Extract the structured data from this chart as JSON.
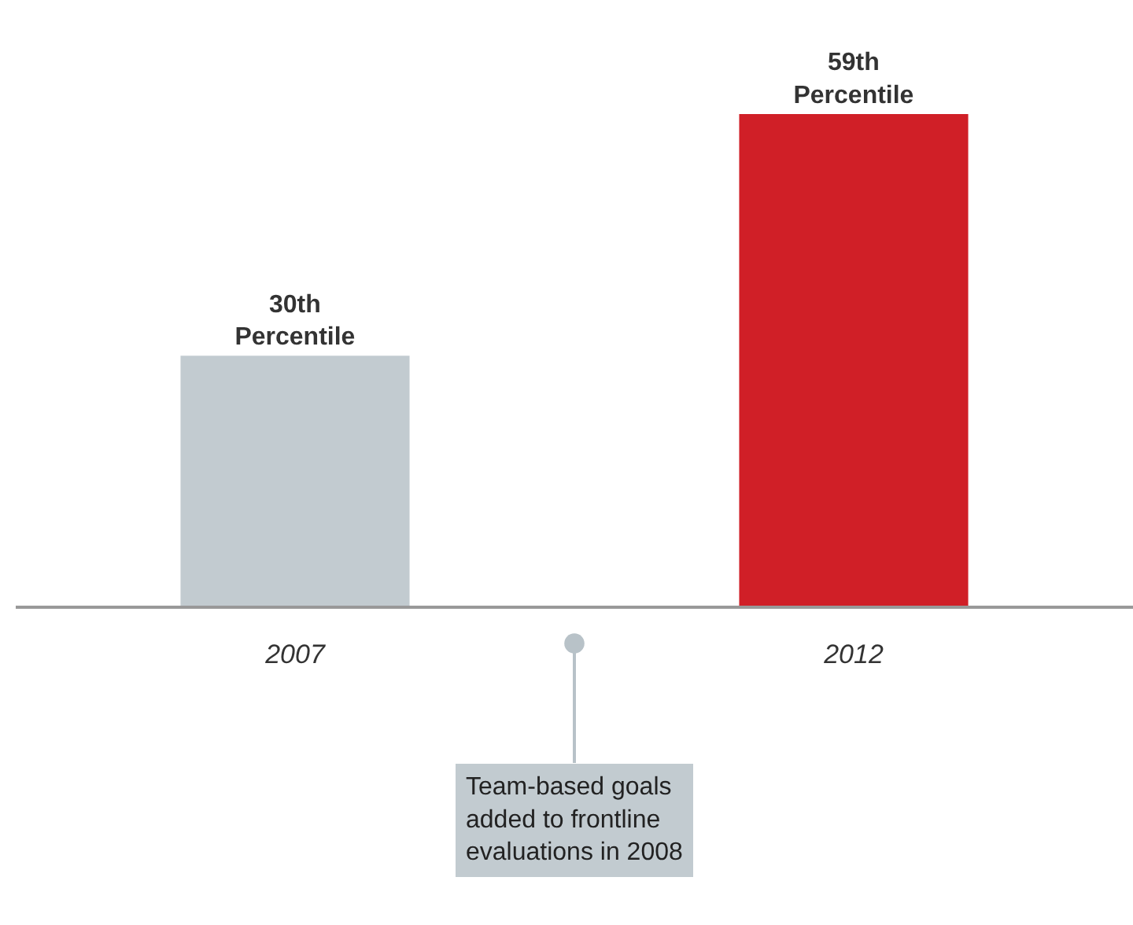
{
  "chart_data": {
    "type": "bar",
    "categories": [
      "2007",
      "2012"
    ],
    "values": [
      30,
      59
    ],
    "colors": [
      "#c2cbd0",
      "#d01f27"
    ],
    "value_labels": [
      "30th\nPercentile",
      "59th\nPercentile"
    ],
    "annotations": [
      "Team-based goals\nadded to frontline\nevaluations in 2008"
    ]
  }
}
